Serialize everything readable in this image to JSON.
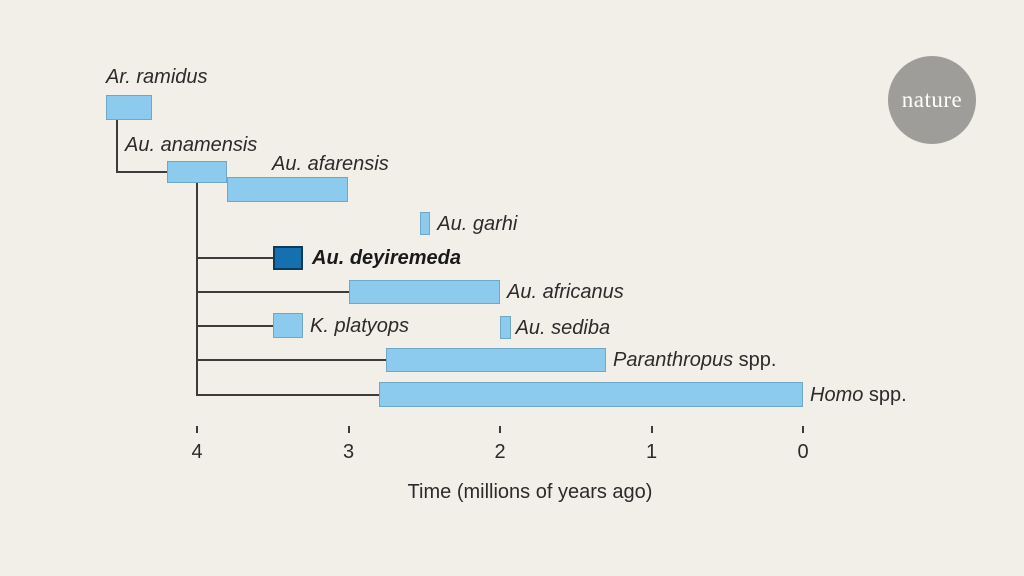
{
  "page": {
    "background": "#F2EFE8"
  },
  "logo": {
    "text": "nature",
    "circle_color": "#9E9D99",
    "text_color": "#FFFFFF"
  },
  "chart_data": {
    "type": "bar",
    "subtype": "phylogenetic-timeline",
    "title": "",
    "xlabel": "Time (millions of years ago)",
    "x_ticks": [
      4,
      3,
      2,
      1,
      0
    ],
    "x_axis_direction": "reversed (older time on the left)",
    "x_range_ma": [
      4.75,
      -0.05
    ],
    "grid": false,
    "legend": "none",
    "colors": {
      "background": "#F2EFE8",
      "bar_fill": "#8DCBEE",
      "bar_border": "#6FA7C9",
      "highlight_fill": "#1570B0",
      "highlight_border": "#0F3A5A",
      "line": "#3C3C3C",
      "text": "#2B2B2B",
      "logo_bg": "#9E9D99"
    },
    "species": [
      {
        "id": "ramidus",
        "name": "Ar. ramidus",
        "suffix": "",
        "start_ma": 4.6,
        "end_ma": 4.3,
        "style": "light",
        "bold": false
      },
      {
        "id": "anamensis",
        "name": "Au. anamensis",
        "suffix": "",
        "start_ma": 4.2,
        "end_ma": 3.8,
        "style": "light",
        "bold": false
      },
      {
        "id": "afarensis",
        "name": "Au. afarensis",
        "suffix": "",
        "start_ma": 3.8,
        "end_ma": 3.0,
        "style": "light",
        "bold": false
      },
      {
        "id": "garhi",
        "name": "Au. garhi",
        "suffix": "",
        "start_ma": 2.53,
        "end_ma": 2.46,
        "style": "light",
        "bold": false
      },
      {
        "id": "deyiremeda",
        "name": "Au. deyiremeda",
        "suffix": "",
        "start_ma": 3.5,
        "end_ma": 3.3,
        "style": "dark",
        "bold": true
      },
      {
        "id": "africanus",
        "name": "Au. africanus",
        "suffix": "",
        "start_ma": 3.0,
        "end_ma": 2.0,
        "style": "light",
        "bold": false
      },
      {
        "id": "platyops",
        "name": "K. platyops",
        "suffix": "",
        "start_ma": 3.5,
        "end_ma": 3.3,
        "style": "light",
        "bold": false
      },
      {
        "id": "sediba",
        "name": "Au. sediba",
        "suffix": "",
        "start_ma": 2.0,
        "end_ma": 1.93,
        "style": "light",
        "bold": false
      },
      {
        "id": "paranthropus",
        "name": "Paranthropus",
        "suffix": " spp.",
        "start_ma": 2.75,
        "end_ma": 1.3,
        "style": "light",
        "bold": false
      },
      {
        "id": "homo",
        "name": "Homo",
        "suffix": " spp.",
        "start_ma": 2.8,
        "end_ma": 0.0,
        "style": "light",
        "bold": false
      }
    ],
    "tree": {
      "root": "ramidus",
      "root_child": "anamensis",
      "trunk_parent": "anamensis",
      "trunk_children": [
        "deyiremeda",
        "africanus",
        "platyops",
        "paranthropus",
        "homo"
      ]
    }
  }
}
